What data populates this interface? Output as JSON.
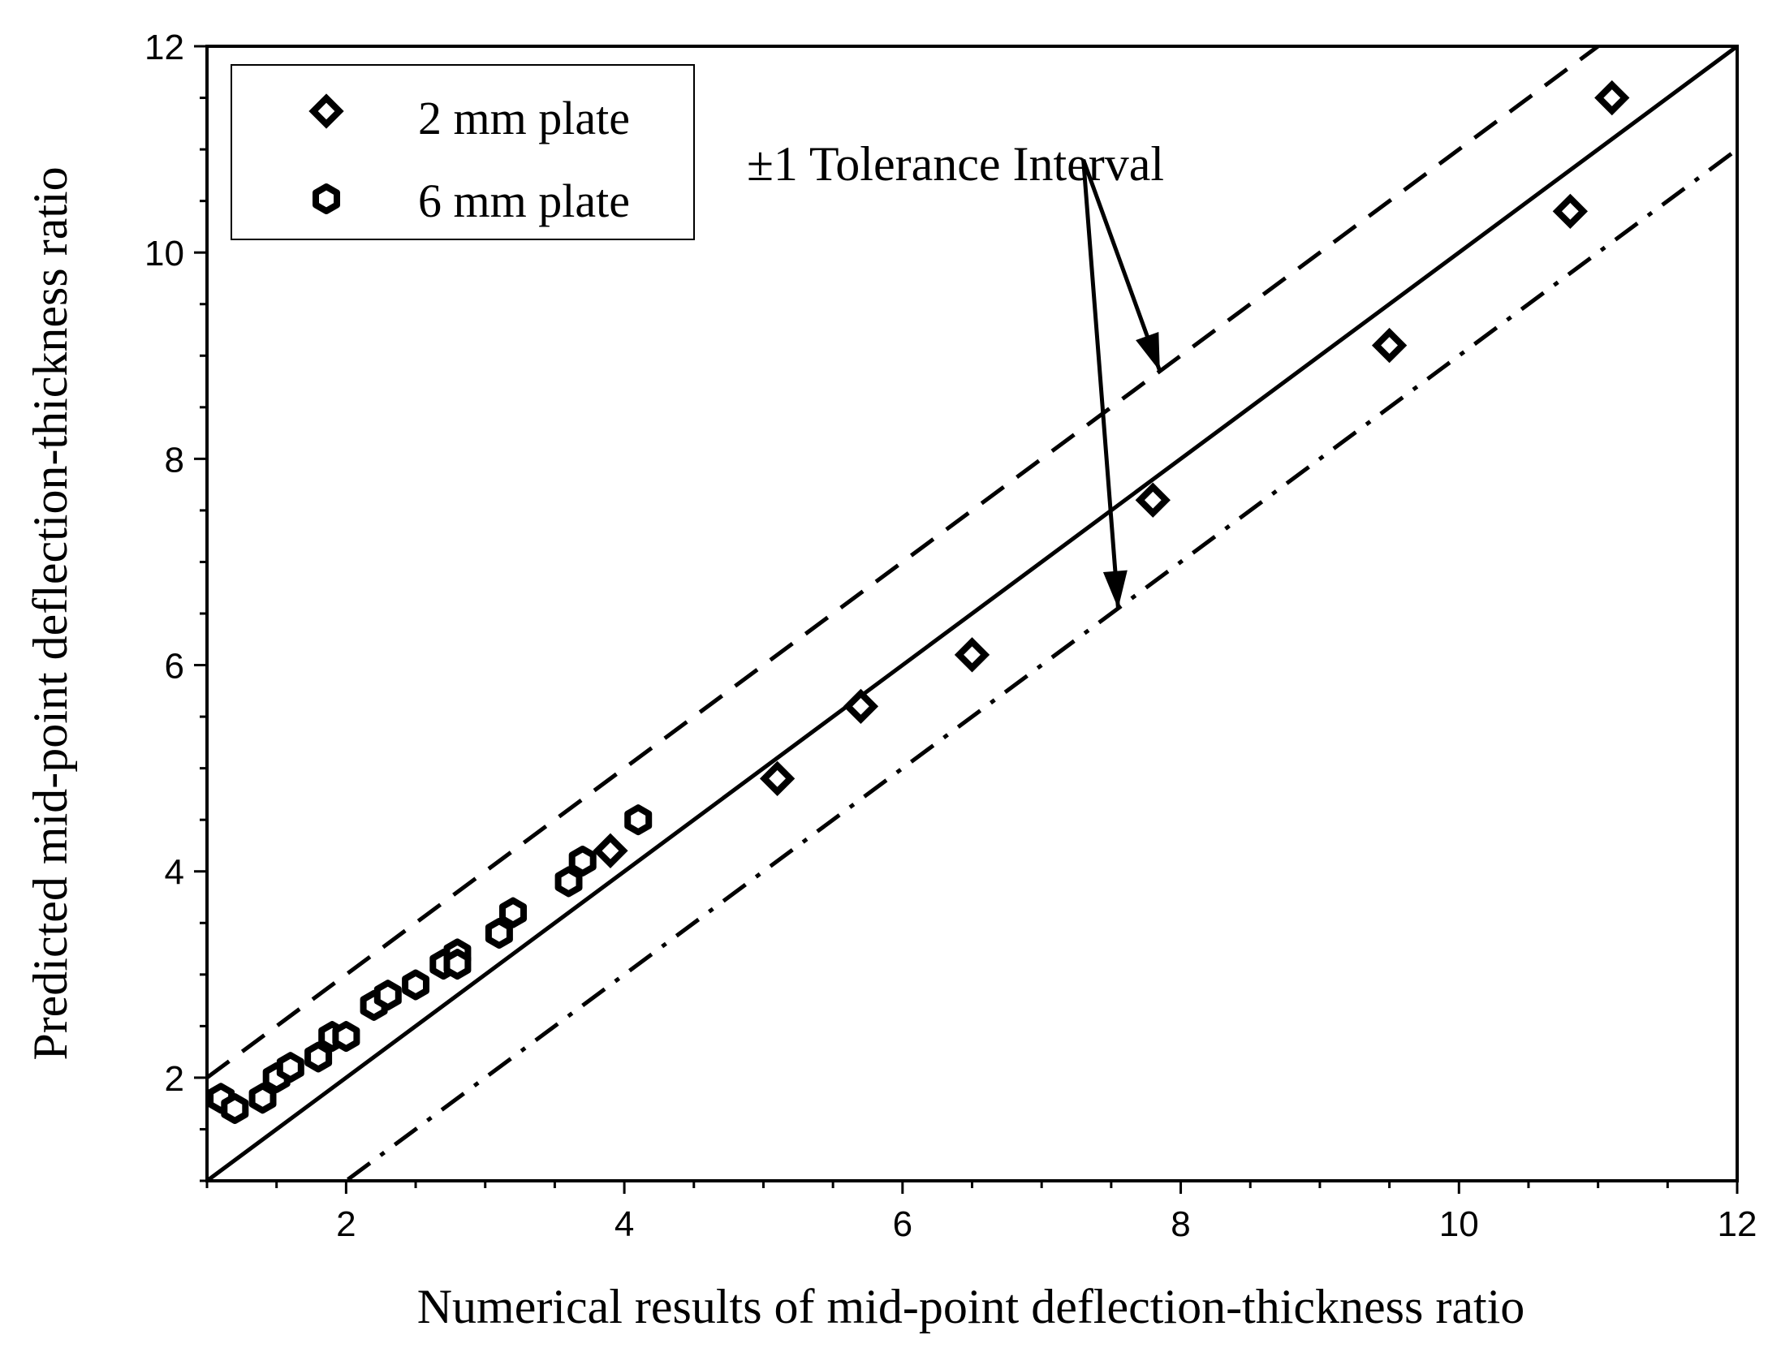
{
  "chart_data": {
    "type": "scatter",
    "title": "",
    "xlabel": "Numerical results of mid-point deflection-thickness ratio",
    "ylabel": "Predicted mid-point deflection-thickness ratio",
    "xlim": [
      1,
      12
    ],
    "ylim": [
      1,
      12
    ],
    "xticks": [
      2,
      4,
      6,
      8,
      10,
      12
    ],
    "yticks": [
      2,
      4,
      6,
      8,
      10,
      12
    ],
    "xtick_labels": [
      "2",
      "4",
      "6",
      "8",
      "10",
      "12"
    ],
    "ytick_labels": [
      "2",
      "4",
      "6",
      "8",
      "10",
      "12"
    ],
    "legend_position": "top-left",
    "series": [
      {
        "name": "2 mm plate",
        "marker": "diamond",
        "x": [
          3.9,
          5.1,
          5.7,
          6.5,
          7.8,
          9.5,
          10.8,
          11.1
        ],
        "y": [
          4.2,
          4.9,
          5.6,
          6.1,
          7.6,
          9.1,
          10.4,
          11.5
        ]
      },
      {
        "name": "6 mm plate",
        "marker": "hexagon",
        "x": [
          1.1,
          1.2,
          1.4,
          1.5,
          1.6,
          1.8,
          1.9,
          2.0,
          2.2,
          2.3,
          2.5,
          2.7,
          2.8,
          2.8,
          3.1,
          3.2,
          3.6,
          3.7,
          4.1
        ],
        "y": [
          1.8,
          1.7,
          1.8,
          2.0,
          2.1,
          2.2,
          2.4,
          2.4,
          2.7,
          2.8,
          2.9,
          3.1,
          3.2,
          3.1,
          3.4,
          3.6,
          3.9,
          4.1,
          4.5
        ]
      }
    ],
    "reference_lines": [
      {
        "name": "y = x",
        "style": "solid",
        "offset": 0
      },
      {
        "name": "upper tolerance",
        "style": "dashed",
        "offset": 1
      },
      {
        "name": "lower tolerance",
        "style": "dash-dot",
        "offset": -1
      }
    ],
    "annotation": {
      "text": "±1 Tolerance Interval",
      "arrow_from": [
        7.3,
        10.9
      ],
      "arrow_targets": [
        [
          7.85,
          8.85
        ],
        [
          7.55,
          6.55
        ]
      ]
    }
  }
}
